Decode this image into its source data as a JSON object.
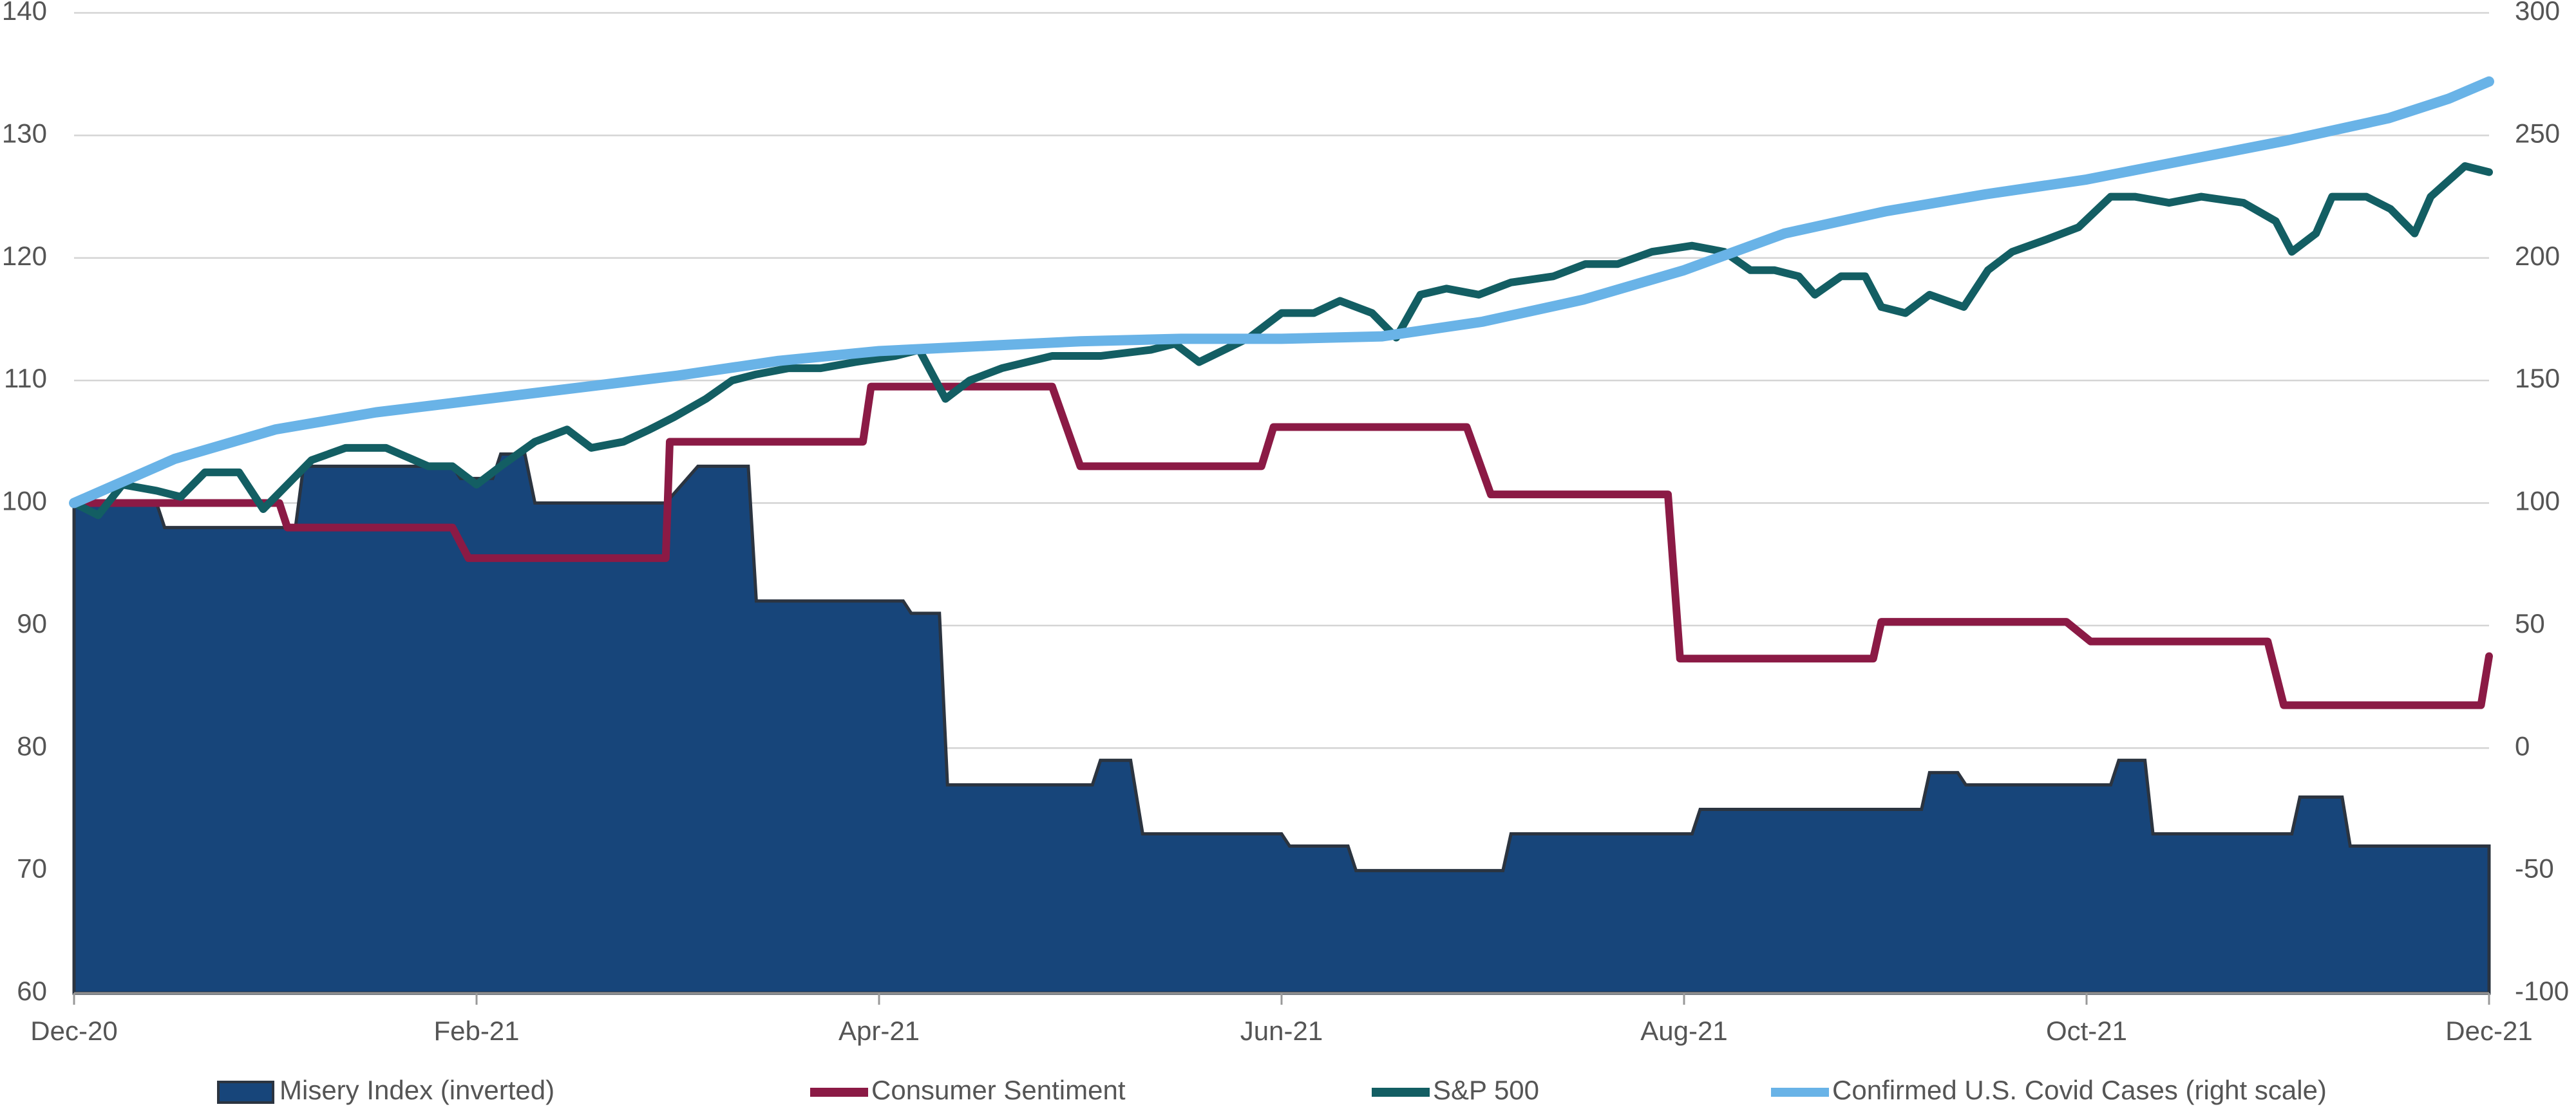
{
  "chart_data": {
    "type": "line",
    "xlim": [
      0,
      12
    ],
    "xticks": [
      {
        "value": 0,
        "label": "Dec-20"
      },
      {
        "value": 2,
        "label": "Feb-21"
      },
      {
        "value": 4,
        "label": "Apr-21"
      },
      {
        "value": 6,
        "label": "Jun-21"
      },
      {
        "value": 8,
        "label": "Aug-21"
      },
      {
        "value": 10,
        "label": "Oct-21"
      },
      {
        "value": 12,
        "label": "Dec-21"
      }
    ],
    "ylim": [
      60,
      140
    ],
    "yticks": [
      60,
      70,
      80,
      90,
      100,
      110,
      120,
      130,
      140
    ],
    "y2lim": [
      -100,
      300
    ],
    "y2ticks": [
      -100,
      -50,
      0,
      50,
      100,
      150,
      200,
      250,
      300
    ],
    "grid": true,
    "series": [
      {
        "name": "Misery Index (inverted)",
        "type": "area",
        "color": "#17457a",
        "x": [
          0,
          0.41,
          0.45,
          1.1,
          1.14,
          1.88,
          1.92,
          2.08,
          2.12,
          2.24,
          2.29,
          2.94,
          3.1,
          3.35,
          3.39,
          4.12,
          4.16,
          4.3,
          4.34,
          5.06,
          5.1,
          5.25,
          5.31,
          6.0,
          6.04,
          6.33,
          6.37,
          7.1,
          7.14,
          8.04,
          8.08,
          9.18,
          9.22,
          9.36,
          9.4,
          10.12,
          10.16,
          10.29,
          10.33,
          11.02,
          11.06,
          11.27,
          11.31,
          12
        ],
        "values": [
          100,
          100,
          98,
          98,
          103,
          103,
          102,
          102,
          104,
          104,
          100,
          100,
          103,
          103,
          92,
          92,
          91,
          91,
          77,
          77,
          79,
          79,
          73,
          73,
          72,
          72,
          70,
          70,
          73,
          73,
          75,
          75,
          78,
          78,
          77,
          77,
          79,
          79,
          73,
          73,
          76,
          76,
          72,
          72
        ]
      },
      {
        "name": "Consumer Sentiment",
        "type": "line",
        "color": "#8b1a45",
        "x": [
          0,
          1.02,
          1.06,
          1.88,
          1.96,
          2.94,
          2.96,
          3.92,
          3.96,
          4.86,
          5.0,
          5.9,
          5.96,
          6.92,
          7.04,
          7.92,
          7.98,
          8.94,
          8.98,
          9.9,
          10.02,
          10.9,
          10.98,
          11.96,
          12
        ],
        "values": [
          100,
          100,
          98,
          98,
          95.5,
          95.5,
          105,
          105,
          109.5,
          109.5,
          103,
          103,
          106.2,
          106.2,
          100.7,
          100.7,
          87.3,
          87.3,
          90.3,
          90.3,
          88.7,
          88.7,
          83.5,
          83.5,
          87.5
        ]
      },
      {
        "name": "S&P 500",
        "type": "line",
        "color": "#135e63",
        "x": [
          0,
          0.12,
          0.24,
          0.41,
          0.53,
          0.65,
          0.82,
          0.94,
          1.06,
          1.18,
          1.35,
          1.55,
          1.76,
          1.88,
          2.0,
          2.12,
          2.29,
          2.45,
          2.57,
          2.73,
          2.86,
          2.98,
          3.14,
          3.27,
          3.39,
          3.55,
          3.71,
          3.88,
          4.08,
          4.2,
          4.33,
          4.45,
          4.61,
          4.86,
          5.1,
          5.35,
          5.47,
          5.59,
          5.84,
          6.0,
          6.16,
          6.29,
          6.45,
          6.57,
          6.69,
          6.82,
          6.98,
          7.14,
          7.35,
          7.51,
          7.67,
          7.84,
          8.04,
          8.2,
          8.33,
          8.45,
          8.57,
          8.65,
          8.78,
          8.9,
          8.98,
          9.1,
          9.22,
          9.39,
          9.51,
          9.63,
          9.8,
          9.96,
          10.12,
          10.24,
          10.41,
          10.57,
          10.78,
          10.94,
          11.02,
          11.14,
          11.22,
          11.39,
          11.51,
          11.63,
          11.71,
          11.88,
          12
        ],
        "values": [
          100,
          99,
          101.5,
          101,
          100.5,
          102.5,
          102.5,
          99.5,
          101.5,
          103.5,
          104.5,
          104.5,
          103,
          103,
          101.5,
          103,
          105,
          106,
          104.5,
          105,
          106,
          107,
          108.5,
          110,
          110.5,
          111,
          111,
          111.5,
          112,
          112.5,
          108.5,
          110,
          111,
          112,
          112,
          112.5,
          113,
          111.5,
          113.5,
          115.5,
          115.5,
          116.5,
          115.5,
          113.5,
          117,
          117.5,
          117,
          118,
          118.5,
          119.5,
          119.5,
          120.5,
          121,
          120.5,
          119,
          119,
          118.5,
          117,
          118.5,
          118.5,
          116,
          115.5,
          117,
          116,
          119,
          120.5,
          121.5,
          122.5,
          125,
          125,
          124.5,
          125,
          124.5,
          123,
          120.5,
          122,
          125,
          125,
          124,
          122,
          125,
          127.5,
          127
        ]
      },
      {
        "name": "Confirmed U.S. Covid Cases (right scale)",
        "type": "line",
        "color": "#69b3e7",
        "axis": "y2",
        "x": [
          0,
          0.5,
          1,
          1.5,
          2,
          2.5,
          3,
          3.5,
          4,
          4.5,
          5,
          5.5,
          6,
          6.5,
          7,
          7.5,
          8,
          8.5,
          9,
          9.5,
          10,
          10.5,
          11,
          11.5,
          11.8,
          12
        ],
        "values": [
          100,
          118,
          130,
          137,
          142,
          147,
          152,
          158,
          162,
          164,
          166,
          167,
          167,
          168,
          174,
          183,
          195,
          210,
          219,
          226,
          232,
          240,
          248,
          257,
          265,
          272
        ]
      }
    ]
  }
}
